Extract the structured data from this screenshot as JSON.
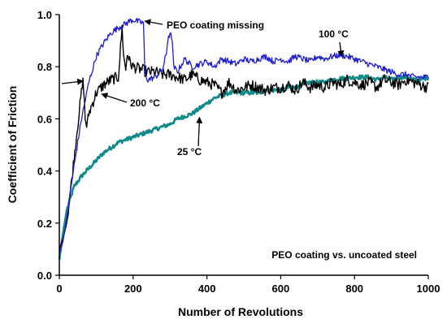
{
  "chart_data": {
    "type": "line",
    "title": "",
    "xlabel": "Number of Revolutions",
    "ylabel": "Coefficient of Friction",
    "xlim": [
      0,
      1000
    ],
    "ylim": [
      0,
      1.0
    ],
    "x_ticks": [
      0,
      200,
      400,
      600,
      800,
      1000
    ],
    "y_ticks": [
      0.0,
      0.2,
      0.4,
      0.6,
      0.8,
      1.0
    ],
    "x_tick_labels": [
      "0",
      "200",
      "400",
      "600",
      "800",
      "1000"
    ],
    "y_tick_labels": [
      "0.0",
      "0.2",
      "0.4",
      "0.6",
      "0.8",
      "1.0"
    ],
    "grid": false,
    "legend": "none",
    "series": [
      {
        "name": "100 °C",
        "color": "#1f1fd0",
        "noise": 0.012,
        "x": [
          0,
          10,
          20,
          40,
          60,
          80,
          100,
          120,
          140,
          160,
          180,
          190,
          200,
          210,
          220,
          228,
          232,
          240,
          260,
          280,
          290,
          295,
          300,
          305,
          310,
          315,
          320,
          340,
          360,
          380,
          400,
          420,
          440,
          460,
          480,
          500,
          520,
          540,
          560,
          580,
          600,
          620,
          640,
          660,
          680,
          700,
          720,
          740,
          760,
          780,
          800,
          820,
          840,
          860,
          880,
          900,
          920,
          940,
          960,
          980,
          1000
        ],
        "y": [
          0.08,
          0.13,
          0.22,
          0.42,
          0.6,
          0.74,
          0.84,
          0.89,
          0.93,
          0.95,
          0.965,
          0.975,
          0.98,
          0.975,
          0.97,
          0.97,
          0.77,
          0.75,
          0.76,
          0.79,
          0.85,
          0.92,
          0.92,
          0.92,
          0.8,
          0.79,
          0.78,
          0.83,
          0.8,
          0.81,
          0.82,
          0.8,
          0.83,
          0.82,
          0.81,
          0.83,
          0.82,
          0.83,
          0.84,
          0.82,
          0.83,
          0.82,
          0.84,
          0.83,
          0.82,
          0.84,
          0.83,
          0.84,
          0.845,
          0.84,
          0.83,
          0.82,
          0.81,
          0.8,
          0.79,
          0.78,
          0.77,
          0.77,
          0.76,
          0.76,
          0.76
        ]
      },
      {
        "name": "200 °C",
        "color": "#000000",
        "noise": 0.022,
        "x": [
          0,
          10,
          20,
          30,
          40,
          50,
          60,
          65,
          70,
          75,
          80,
          90,
          100,
          120,
          140,
          160,
          170,
          175,
          180,
          185,
          190,
          200,
          220,
          240,
          260,
          280,
          300,
          320,
          340,
          360,
          380,
          400,
          420,
          440,
          460,
          480,
          500,
          520,
          540,
          560,
          580,
          600,
          620,
          640,
          660,
          680,
          700,
          720,
          740,
          760,
          780,
          800,
          820,
          840,
          860,
          880,
          900,
          920,
          940,
          960,
          980,
          1000
        ],
        "y": [
          0.1,
          0.14,
          0.2,
          0.32,
          0.45,
          0.58,
          0.7,
          0.75,
          0.6,
          0.57,
          0.62,
          0.66,
          0.7,
          0.73,
          0.75,
          0.76,
          0.95,
          0.83,
          0.79,
          0.86,
          0.82,
          0.8,
          0.79,
          0.78,
          0.78,
          0.77,
          0.77,
          0.76,
          0.75,
          0.77,
          0.75,
          0.74,
          0.73,
          0.7,
          0.74,
          0.71,
          0.72,
          0.73,
          0.72,
          0.71,
          0.72,
          0.72,
          0.73,
          0.71,
          0.74,
          0.72,
          0.73,
          0.72,
          0.74,
          0.73,
          0.75,
          0.74,
          0.73,
          0.74,
          0.72,
          0.75,
          0.74,
          0.73,
          0.75,
          0.74,
          0.73,
          0.72
        ]
      },
      {
        "name": "25 °C",
        "color": "#0f8a8a",
        "noise": 0.008,
        "x": [
          0,
          10,
          20,
          40,
          60,
          80,
          100,
          120,
          140,
          160,
          180,
          200,
          220,
          240,
          260,
          280,
          300,
          320,
          340,
          360,
          380,
          400,
          420,
          440,
          460,
          480,
          500,
          520,
          540,
          560,
          580,
          600,
          620,
          640,
          660,
          680,
          700,
          720,
          740,
          760,
          780,
          800,
          820,
          840,
          860,
          880,
          900,
          920,
          940,
          960,
          980,
          1000
        ],
        "y": [
          0.06,
          0.16,
          0.25,
          0.34,
          0.38,
          0.41,
          0.44,
          0.47,
          0.49,
          0.51,
          0.52,
          0.53,
          0.54,
          0.55,
          0.56,
          0.57,
          0.58,
          0.6,
          0.61,
          0.62,
          0.64,
          0.66,
          0.68,
          0.69,
          0.7,
          0.7,
          0.7,
          0.7,
          0.7,
          0.71,
          0.71,
          0.71,
          0.72,
          0.72,
          0.73,
          0.74,
          0.74,
          0.74,
          0.75,
          0.755,
          0.755,
          0.76,
          0.76,
          0.76,
          0.75,
          0.76,
          0.75,
          0.76,
          0.76,
          0.75,
          0.75,
          0.76
        ]
      }
    ],
    "annotations": [
      {
        "text": "PEO coating missing",
        "arrow_to": [
          232,
          0.975
        ]
      },
      {
        "text": "100 °C",
        "arrow_to": [
          765,
          0.84
        ]
      },
      {
        "text": "200 °C",
        "arrow_to": [
          115,
          0.695
        ]
      },
      {
        "text": "25 °C",
        "arrow_to": [
          380,
          0.605
        ]
      },
      {
        "text": "",
        "arrow_to": [
          64,
          0.745
        ]
      },
      {
        "text": "PEO coating vs. uncoated steel"
      }
    ]
  }
}
